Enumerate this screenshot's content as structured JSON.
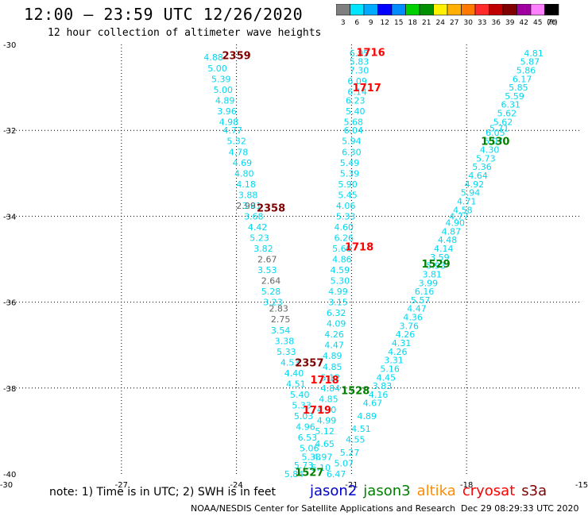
{
  "header": {
    "title": "12:00 — 23:59 UTC 12/26/2020",
    "subtitle": "12 hour collection of altimeter wave heights"
  },
  "colorbar": {
    "labels": [
      "3",
      "6",
      "9",
      "12",
      "15",
      "18",
      "21",
      "24",
      "27",
      "30",
      "33",
      "36",
      "39",
      "42",
      "45",
      "70"
    ],
    "unit": "(ft)",
    "colors": [
      "#7f7f7f",
      "#00e5ff",
      "#00aaff",
      "#0000ff",
      "#008cff",
      "#00d000",
      "#009000",
      "#fff200",
      "#ffb000",
      "#ff7a00",
      "#ff2a2a",
      "#c00000",
      "#800000",
      "#a000a0",
      "#ff80ff",
      "#000000"
    ]
  },
  "footer": {
    "note": "note: 1) Time is in UTC; 2) SWH is in feet",
    "credit": "NOAA/NESDIS Center for Satellite Applications and Research",
    "timestamp": "Dec 29 08:29:33 UTC 2020"
  },
  "legend": [
    {
      "label": "jason2",
      "color": "#0000cc"
    },
    {
      "label": "jason3",
      "color": "#008000"
    },
    {
      "label": "altika",
      "color": "#ff8c00"
    },
    {
      "label": "cryosat",
      "color": "#ff0000"
    },
    {
      "label": "s3a",
      "color": "#800000"
    }
  ],
  "chart_data": {
    "type": "scatter",
    "xlim": [
      -30,
      -15
    ],
    "ylim": [
      -40,
      -30
    ],
    "x_ticks": [
      -30,
      -27,
      -24,
      -21,
      -18,
      -15
    ],
    "x_tick_labels": [
      "-30",
      "-27",
      "-24",
      "-21",
      "-18",
      "-15"
    ],
    "y_ticks": [
      -30,
      -32,
      -34,
      -36,
      -38,
      -40
    ],
    "y_tick_labels": [
      "-30",
      "-32",
      "-34",
      "-36",
      "-38",
      "-40"
    ],
    "grid": true,
    "colors": {
      "cyan": "#00d8f0",
      "gray": "#666666",
      "red": "#ff0000",
      "green": "#008000",
      "maroon": "#800000"
    },
    "time_labels": [
      {
        "text": "2359",
        "x": -24.0,
        "y": -30.25,
        "color": "#800000"
      },
      {
        "text": "1716",
        "x": -20.5,
        "y": -30.18,
        "color": "#ff0000"
      },
      {
        "text": "1717",
        "x": -20.6,
        "y": -31.0,
        "color": "#ff0000"
      },
      {
        "text": "1530",
        "x": -17.25,
        "y": -32.25,
        "color": "#008000"
      },
      {
        "text": "2358",
        "x": -23.1,
        "y": -33.8,
        "color": "#800000"
      },
      {
        "text": "1718",
        "x": -20.8,
        "y": -34.7,
        "color": "#ff0000"
      },
      {
        "text": "1529",
        "x": -18.8,
        "y": -35.1,
        "color": "#008000"
      },
      {
        "text": "2357",
        "x": -22.1,
        "y": -37.4,
        "color": "#800000"
      },
      {
        "text": "1718",
        "x": -21.7,
        "y": -37.8,
        "color": "#ff0000"
      },
      {
        "text": "1528",
        "x": -20.9,
        "y": -38.05,
        "color": "#008000"
      },
      {
        "text": "1719",
        "x": -21.9,
        "y": -38.5,
        "color": "#ff0000"
      },
      {
        "text": "1527",
        "x": -22.1,
        "y": -39.95,
        "color": "#008000"
      }
    ],
    "series": [
      {
        "color": "cyan",
        "points": [
          {
            "v": "4.88",
            "x": -24.6,
            "y": -30.3
          },
          {
            "v": "5.00",
            "x": -24.5,
            "y": -30.55
          },
          {
            "v": "5.39",
            "x": -24.4,
            "y": -30.8
          },
          {
            "v": "5.00",
            "x": -24.35,
            "y": -31.05
          },
          {
            "v": "4.89",
            "x": -24.3,
            "y": -31.3
          },
          {
            "v": "3.96",
            "x": -24.25,
            "y": -31.55
          },
          {
            "v": "4.98",
            "x": -24.2,
            "y": -31.8
          },
          {
            "v": "4.77",
            "x": -24.1,
            "y": -32.0
          },
          {
            "v": "5.32",
            "x": -24.0,
            "y": -32.25
          },
          {
            "v": "4.78",
            "x": -23.95,
            "y": -32.5
          },
          {
            "v": "4.69",
            "x": -23.85,
            "y": -32.75
          },
          {
            "v": "4.80",
            "x": -23.8,
            "y": -33.0
          },
          {
            "v": "4.18",
            "x": -23.75,
            "y": -33.25
          },
          {
            "v": "3.88",
            "x": -23.7,
            "y": -33.5
          },
          {
            "v": "3.81",
            "x": -23.6,
            "y": -33.75
          },
          {
            "v": "3.68",
            "x": -23.55,
            "y": -34.0
          },
          {
            "v": "4.42",
            "x": -23.45,
            "y": -34.25
          },
          {
            "v": "5.23",
            "x": -23.4,
            "y": -34.5
          },
          {
            "v": "3.82",
            "x": -23.3,
            "y": -34.75
          },
          {
            "v": "3.53",
            "x": -23.2,
            "y": -35.25
          },
          {
            "v": "5.28",
            "x": -23.1,
            "y": -35.75
          },
          {
            "v": "3.23",
            "x": -23.05,
            "y": -36.0
          },
          {
            "v": "3.54",
            "x": -22.85,
            "y": -36.65
          },
          {
            "v": "3.38",
            "x": -22.75,
            "y": -36.9
          },
          {
            "v": "5.33",
            "x": -22.7,
            "y": -37.15
          },
          {
            "v": "4.53",
            "x": -22.6,
            "y": -37.4
          },
          {
            "v": "4.40",
            "x": -22.5,
            "y": -37.65
          },
          {
            "v": "4.51",
            "x": -22.45,
            "y": -37.9
          },
          {
            "v": "5.40",
            "x": -22.35,
            "y": -38.15
          },
          {
            "v": "5.33",
            "x": -22.3,
            "y": -38.4
          },
          {
            "v": "5.03",
            "x": -22.25,
            "y": -38.65
          },
          {
            "v": "4.96",
            "x": -22.2,
            "y": -38.9
          },
          {
            "v": "6.53",
            "x": -22.15,
            "y": -39.15
          },
          {
            "v": "5.06",
            "x": -22.1,
            "y": -39.4
          },
          {
            "v": "5.33",
            "x": -22.05,
            "y": -39.6
          },
          {
            "v": "5.73",
            "x": -22.25,
            "y": -39.8
          },
          {
            "v": "5.84",
            "x": -22.5,
            "y": -40.0
          },
          {
            "v": "6.95",
            "x": -20.8,
            "y": -30.2
          },
          {
            "v": "5.83",
            "x": -20.8,
            "y": -30.4
          },
          {
            "v": "7.30",
            "x": -20.8,
            "y": -30.6
          },
          {
            "v": "6.09",
            "x": -20.85,
            "y": -30.85
          },
          {
            "v": "6.14",
            "x": -20.85,
            "y": -31.1
          },
          {
            "v": "6.23",
            "x": -20.9,
            "y": -31.3
          },
          {
            "v": "5.40",
            "x": -20.9,
            "y": -31.55
          },
          {
            "v": "5.68",
            "x": -20.95,
            "y": -31.8
          },
          {
            "v": "6.04",
            "x": -20.95,
            "y": -32.0
          },
          {
            "v": "5.94",
            "x": -21.0,
            "y": -32.25
          },
          {
            "v": "6.30",
            "x": -21.0,
            "y": -32.5
          },
          {
            "v": "5.49",
            "x": -21.05,
            "y": -32.75
          },
          {
            "v": "5.39",
            "x": -21.05,
            "y": -33.0
          },
          {
            "v": "5.90",
            "x": -21.1,
            "y": -33.25
          },
          {
            "v": "5.45",
            "x": -21.1,
            "y": -33.5
          },
          {
            "v": "4.06",
            "x": -21.15,
            "y": -33.75
          },
          {
            "v": "5.33",
            "x": -21.15,
            "y": -34.0
          },
          {
            "v": "4.60",
            "x": -21.2,
            "y": -34.25
          },
          {
            "v": "6.26",
            "x": -21.2,
            "y": -34.5
          },
          {
            "v": "5.60",
            "x": -21.25,
            "y": -34.75
          },
          {
            "v": "4.86",
            "x": -21.25,
            "y": -35.0
          },
          {
            "v": "4.59",
            "x": -21.3,
            "y": -35.25
          },
          {
            "v": "5.30",
            "x": -21.3,
            "y": -35.5
          },
          {
            "v": "4.99",
            "x": -21.35,
            "y": -35.75
          },
          {
            "v": "3.15",
            "x": -21.35,
            "y": -36.0
          },
          {
            "v": "6.32",
            "x": -21.4,
            "y": -36.25
          },
          {
            "v": "4.09",
            "x": -21.4,
            "y": -36.5
          },
          {
            "v": "4.26",
            "x": -21.45,
            "y": -36.75
          },
          {
            "v": "4.47",
            "x": -21.45,
            "y": -37.0
          },
          {
            "v": "4.89",
            "x": -21.5,
            "y": -37.25
          },
          {
            "v": "4.85",
            "x": -21.5,
            "y": -37.5
          },
          {
            "v": "5.12",
            "x": -21.55,
            "y": -37.75
          },
          {
            "v": "4.84",
            "x": -21.55,
            "y": -38.0
          },
          {
            "v": "4.85",
            "x": -21.6,
            "y": -38.25
          },
          {
            "v": "4.90",
            "x": -21.65,
            "y": -38.5
          },
          {
            "v": "4.99",
            "x": -21.65,
            "y": -38.75
          },
          {
            "v": "5.12",
            "x": -21.7,
            "y": -39.0
          },
          {
            "v": "4.65",
            "x": -21.7,
            "y": -39.3
          },
          {
            "v": "4.97",
            "x": -21.75,
            "y": -39.6
          },
          {
            "v": "5.10",
            "x": -21.8,
            "y": -39.85
          },
          {
            "v": "4.81",
            "x": -16.25,
            "y": -30.2
          },
          {
            "v": "5.87",
            "x": -16.35,
            "y": -30.4
          },
          {
            "v": "5.86",
            "x": -16.45,
            "y": -30.6
          },
          {
            "v": "6.17",
            "x": -16.55,
            "y": -30.8
          },
          {
            "v": "5.85",
            "x": -16.65,
            "y": -31.0
          },
          {
            "v": "5.59",
            "x": -16.75,
            "y": -31.2
          },
          {
            "v": "6.31",
            "x": -16.85,
            "y": -31.4
          },
          {
            "v": "5.62",
            "x": -16.95,
            "y": -31.6
          },
          {
            "v": "5.62",
            "x": -17.05,
            "y": -31.8
          },
          {
            "v": "5.71",
            "x": -17.15,
            "y": -31.95
          },
          {
            "v": "6.05",
            "x": -17.25,
            "y": -32.05
          },
          {
            "v": "6.07",
            "x": -17.3,
            "y": -32.25
          },
          {
            "v": "4.30",
            "x": -17.4,
            "y": -32.45
          },
          {
            "v": "5.73",
            "x": -17.5,
            "y": -32.65
          },
          {
            "v": "5.36",
            "x": -17.6,
            "y": -32.85
          },
          {
            "v": "4.64",
            "x": -17.7,
            "y": -33.05
          },
          {
            "v": "4.92",
            "x": -17.8,
            "y": -33.25
          },
          {
            "v": "5.94",
            "x": -17.9,
            "y": -33.45
          },
          {
            "v": "4.71",
            "x": -18.0,
            "y": -33.65
          },
          {
            "v": "4.58",
            "x": -18.1,
            "y": -33.85
          },
          {
            "v": "4.77",
            "x": -18.2,
            "y": -34.0
          },
          {
            "v": "4.90",
            "x": -18.3,
            "y": -34.15
          },
          {
            "v": "4.87",
            "x": -18.4,
            "y": -34.35
          },
          {
            "v": "4.48",
            "x": -18.5,
            "y": -34.55
          },
          {
            "v": "4.14",
            "x": -18.6,
            "y": -34.75
          },
          {
            "v": "3.59",
            "x": -18.7,
            "y": -34.95
          },
          {
            "v": "5.93",
            "x": -18.8,
            "y": -35.15
          },
          {
            "v": "3.81",
            "x": -18.9,
            "y": -35.35
          },
          {
            "v": "3.99",
            "x": -19.0,
            "y": -35.55
          },
          {
            "v": "6.16",
            "x": -19.1,
            "y": -35.75
          },
          {
            "v": "5.57",
            "x": -19.2,
            "y": -35.95
          },
          {
            "v": "4.47",
            "x": -19.3,
            "y": -36.15
          },
          {
            "v": "4.36",
            "x": -19.4,
            "y": -36.35
          },
          {
            "v": "3.76",
            "x": -19.5,
            "y": -36.55
          },
          {
            "v": "4.26",
            "x": -19.6,
            "y": -36.75
          },
          {
            "v": "4.31",
            "x": -19.7,
            "y": -36.95
          },
          {
            "v": "4.26",
            "x": -19.8,
            "y": -37.15
          },
          {
            "v": "3.31",
            "x": -19.9,
            "y": -37.35
          },
          {
            "v": "5.16",
            "x": -20.0,
            "y": -37.55
          },
          {
            "v": "4.45",
            "x": -20.1,
            "y": -37.75
          },
          {
            "v": "3.83",
            "x": -20.2,
            "y": -37.95
          },
          {
            "v": "4.16",
            "x": -20.3,
            "y": -38.15
          },
          {
            "v": "4.67",
            "x": -20.45,
            "y": -38.35
          },
          {
            "v": "4.89",
            "x": -20.6,
            "y": -38.65
          },
          {
            "v": "4.51",
            "x": -20.75,
            "y": -38.95
          },
          {
            "v": "4.55",
            "x": -20.9,
            "y": -39.2
          },
          {
            "v": "5.27",
            "x": -21.05,
            "y": -39.5
          },
          {
            "v": "5.07",
            "x": -21.2,
            "y": -39.75
          },
          {
            "v": "6.47",
            "x": -21.4,
            "y": -40.0
          }
        ]
      },
      {
        "color": "gray",
        "points": [
          {
            "v": "2.99",
            "x": -23.75,
            "y": -33.75
          },
          {
            "v": "2.67",
            "x": -23.2,
            "y": -35.0
          },
          {
            "v": "2.64",
            "x": -23.1,
            "y": -35.5
          },
          {
            "v": "2.83",
            "x": -22.9,
            "y": -36.15
          },
          {
            "v": "2.75",
            "x": -22.85,
            "y": -36.4
          }
        ]
      }
    ]
  }
}
